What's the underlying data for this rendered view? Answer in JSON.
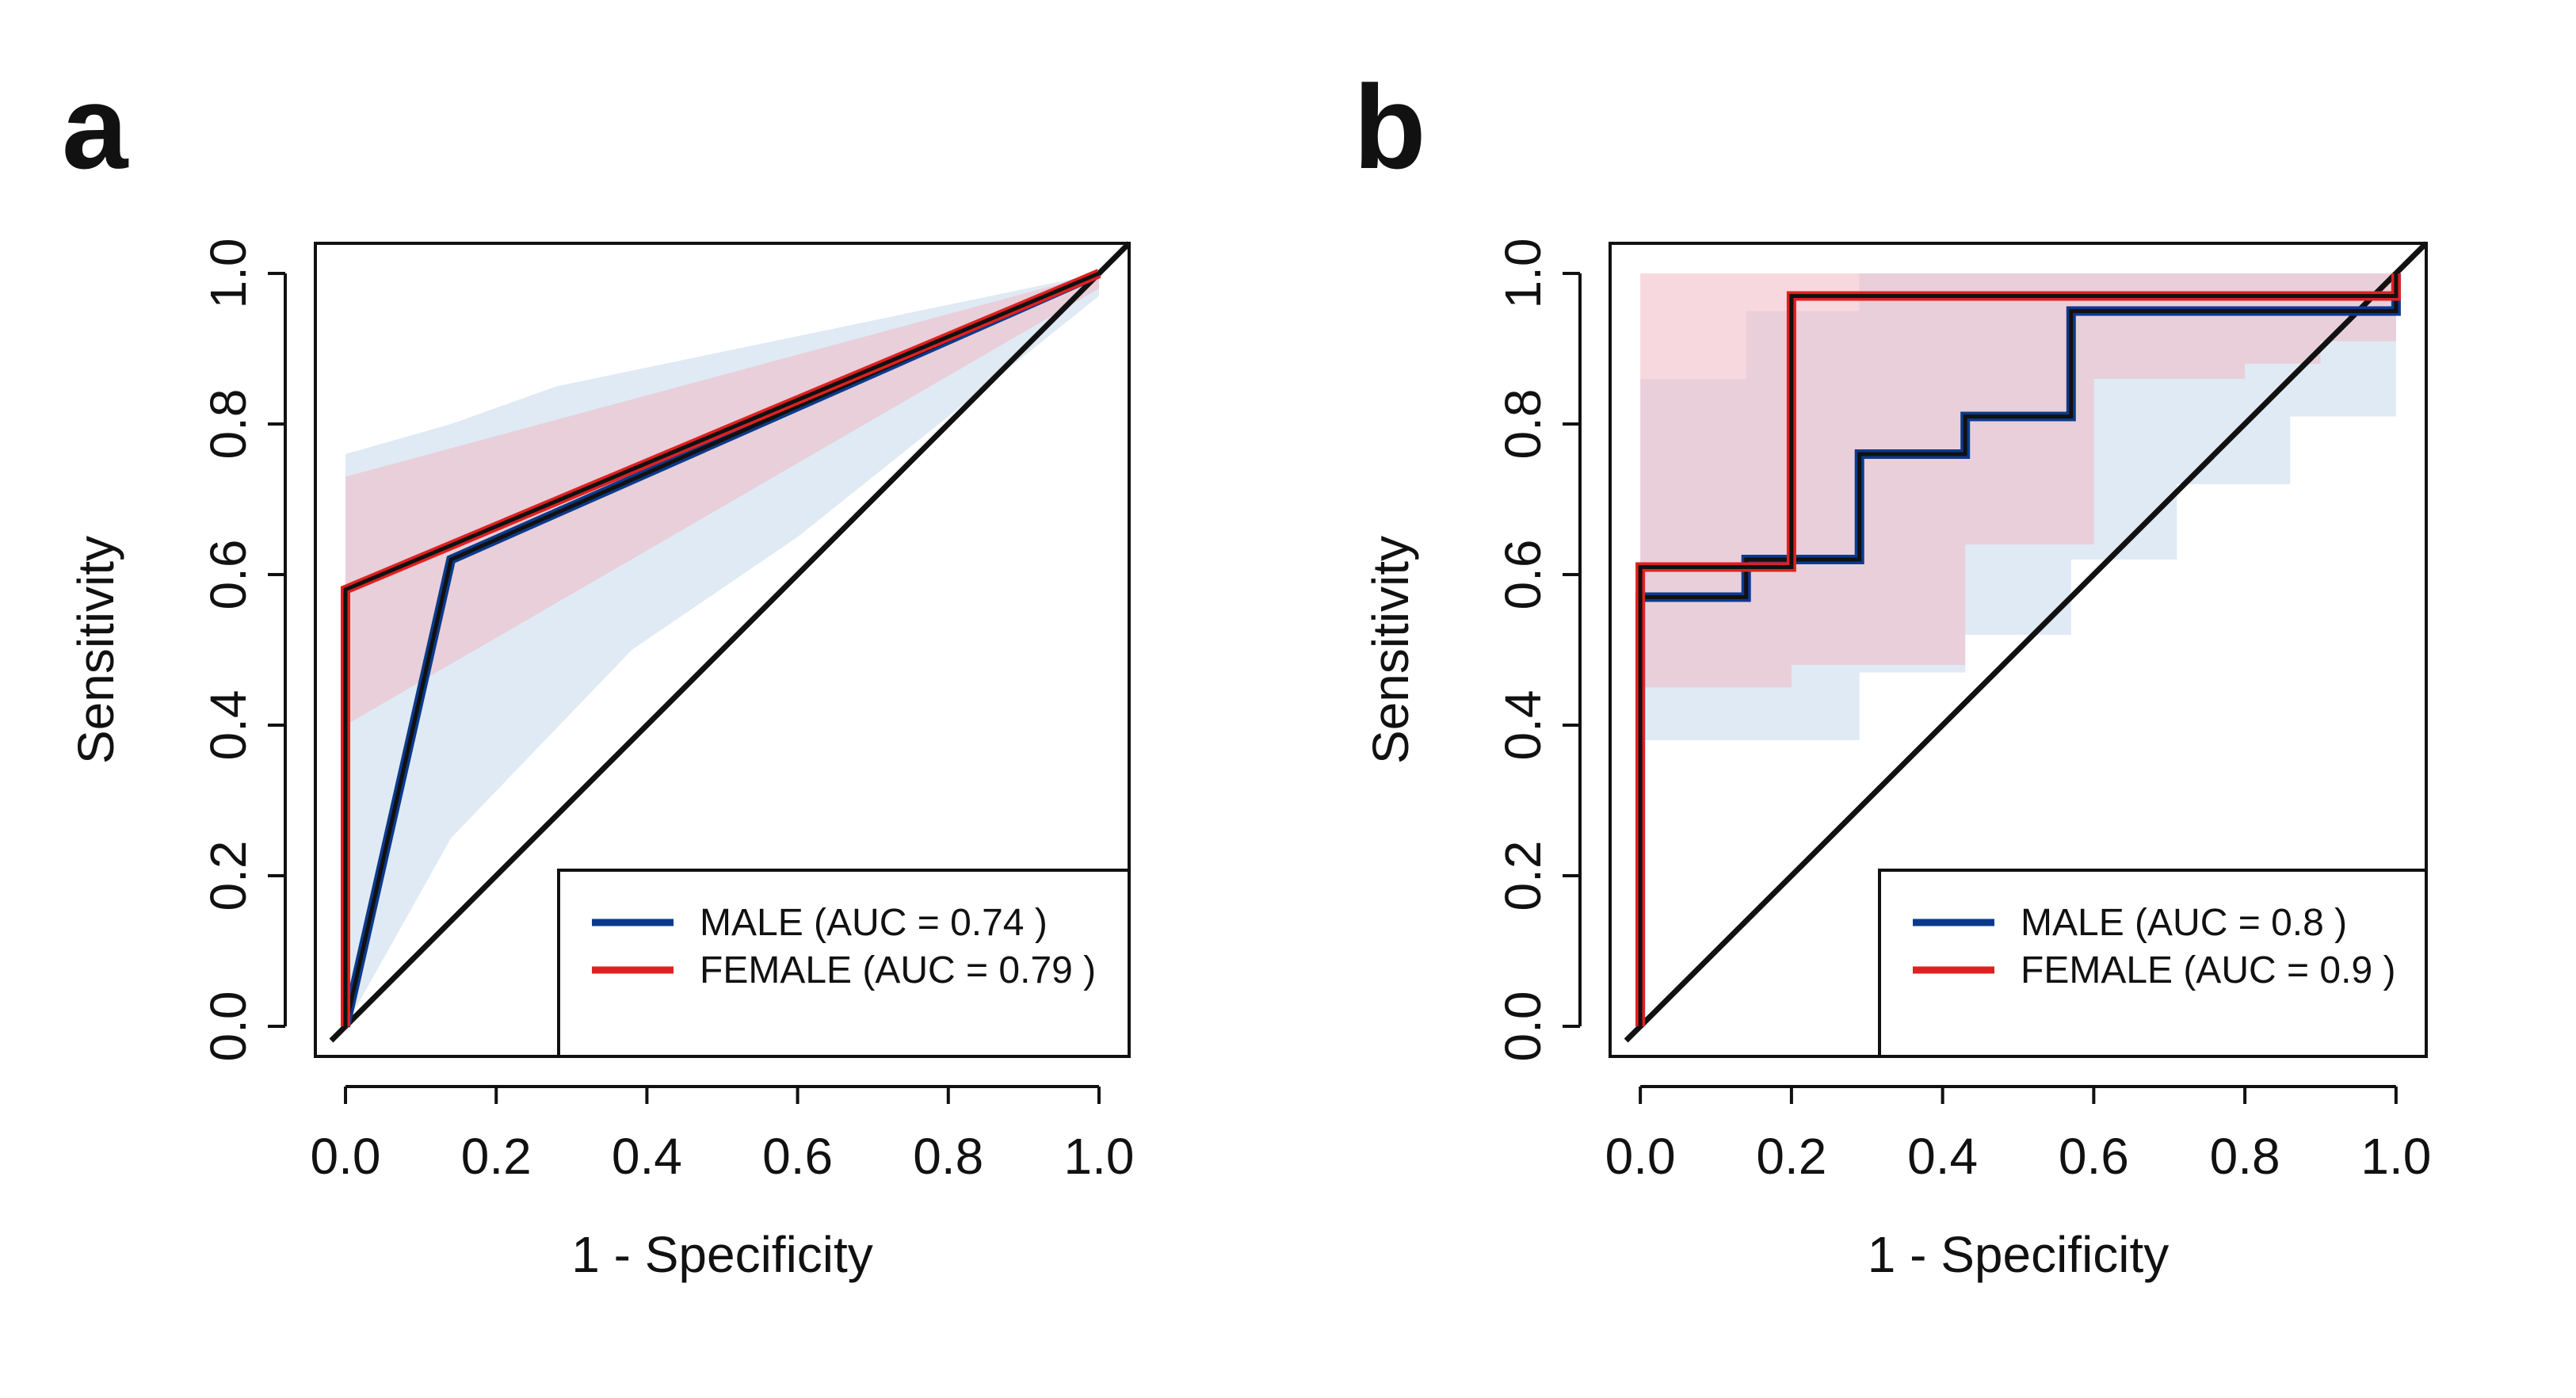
{
  "chart_data": [
    {
      "panel_label": "a",
      "type": "line",
      "title": "",
      "xlabel": "1 - Specificity",
      "ylabel": "Sensitivity",
      "xlim": [
        0,
        1
      ],
      "ylim": [
        0,
        1
      ],
      "x_ticks": [
        "0.0",
        "0.2",
        "0.4",
        "0.6",
        "0.8",
        "1.0"
      ],
      "y_ticks": [
        "0.0",
        "0.2",
        "0.4",
        "0.6",
        "0.8",
        "1.0"
      ],
      "tick_values": [
        0,
        0.2,
        0.4,
        0.6,
        0.8,
        1.0
      ],
      "legend_position": "bottom-right",
      "reference_line": {
        "from": [
          0,
          0
        ],
        "to": [
          1,
          1
        ]
      },
      "series": [
        {
          "name": "MALE (AUC = 0.74 )",
          "color": "#0b3a8c",
          "band_color": "#c9dcec",
          "x": [
            0,
            0.14,
            1
          ],
          "y": [
            0,
            0.62,
            1
          ],
          "ci_upper": [
            [
              0,
              0.76
            ],
            [
              0.14,
              0.8
            ],
            [
              0.28,
              0.85
            ],
            [
              1,
              1
            ]
          ],
          "ci_lower": [
            [
              0,
              0
            ],
            [
              0.14,
              0.25
            ],
            [
              0.38,
              0.5
            ],
            [
              0.6,
              0.65
            ],
            [
              1,
              0.97
            ]
          ]
        },
        {
          "name": "FEMALE (AUC = 0.79 )",
          "color": "#e02020",
          "band_color": "#f0b8c2",
          "x": [
            0,
            0,
            1
          ],
          "y": [
            0,
            0.58,
            1
          ],
          "ci_upper": [
            [
              0,
              0.73
            ],
            [
              1,
              1
            ]
          ],
          "ci_lower": [
            [
              0,
              0.4
            ],
            [
              1,
              0.98
            ]
          ]
        }
      ]
    },
    {
      "panel_label": "b",
      "type": "line",
      "title": "",
      "xlabel": "1 - Specificity",
      "ylabel": "Sensitivity",
      "xlim": [
        0,
        1
      ],
      "ylim": [
        0,
        1
      ],
      "x_ticks": [
        "0.0",
        "0.2",
        "0.4",
        "0.6",
        "0.8",
        "1.0"
      ],
      "y_ticks": [
        "0.0",
        "0.2",
        "0.4",
        "0.6",
        "0.8",
        "1.0"
      ],
      "tick_values": [
        0,
        0.2,
        0.4,
        0.6,
        0.8,
        1.0
      ],
      "legend_position": "bottom-right",
      "reference_line": {
        "from": [
          0,
          0
        ],
        "to": [
          1,
          1
        ]
      },
      "series": [
        {
          "name": "MALE (AUC = 0.8 )",
          "color": "#0b3a8c",
          "band_color": "#c9dcec",
          "x": [
            0,
            0,
            0.14,
            0.14,
            0.29,
            0.29,
            0.43,
            0.43,
            0.57,
            0.57,
            1,
            1
          ],
          "y": [
            0,
            0.57,
            0.57,
            0.62,
            0.62,
            0.76,
            0.76,
            0.81,
            0.81,
            0.95,
            0.95,
            1
          ],
          "ci_upper": [
            [
              0,
              0.86
            ],
            [
              0.14,
              0.95
            ],
            [
              0.29,
              1
            ],
            [
              1,
              1
            ]
          ],
          "ci_lower": [
            [
              0,
              0.38
            ],
            [
              0.29,
              0.47
            ],
            [
              0.43,
              0.52
            ],
            [
              0.57,
              0.62
            ],
            [
              0.71,
              0.72
            ],
            [
              0.86,
              0.81
            ],
            [
              1,
              0.81
            ]
          ]
        },
        {
          "name": "FEMALE (AUC = 0.9 )",
          "color": "#e02020",
          "band_color": "#f0b8c2",
          "x": [
            0,
            0,
            0.2,
            0.2,
            1,
            1
          ],
          "y": [
            0,
            0.61,
            0.61,
            0.97,
            0.97,
            1
          ],
          "ci_upper": [
            [
              0,
              1
            ],
            [
              1,
              1
            ]
          ],
          "ci_lower": [
            [
              0,
              0.45
            ],
            [
              0.2,
              0.48
            ],
            [
              0.43,
              0.64
            ],
            [
              0.6,
              0.86
            ],
            [
              0.8,
              0.88
            ],
            [
              0.9,
              0.91
            ],
            [
              1,
              0.91
            ]
          ]
        }
      ]
    }
  ]
}
